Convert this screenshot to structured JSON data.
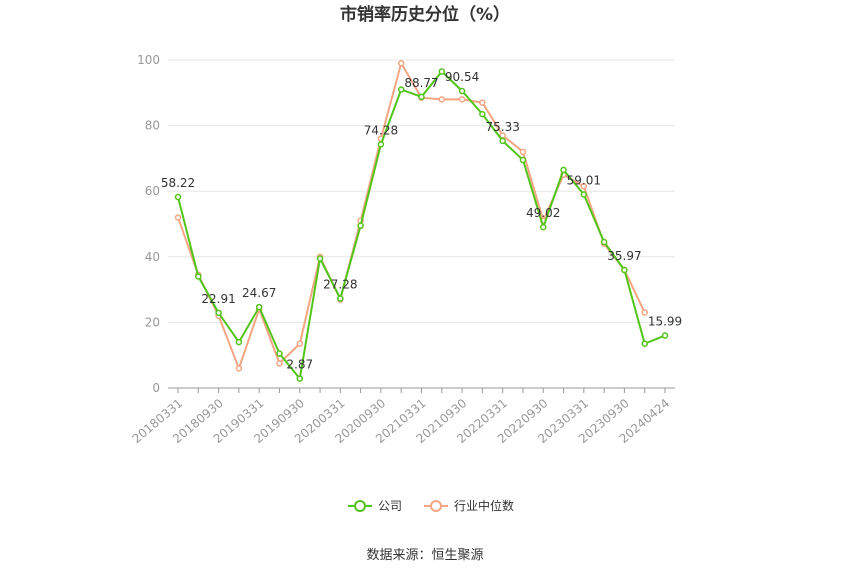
{
  "chart_data": {
    "type": "line",
    "title": "市销率历史分位（%）",
    "xlabel": "",
    "ylabel": "",
    "ylim": [
      0,
      100
    ],
    "yticks": [
      0,
      20,
      40,
      60,
      80,
      100
    ],
    "categories": [
      "20180331",
      "",
      "20180930",
      "",
      "20190331",
      "",
      "20190930",
      "",
      "20200331",
      "",
      "20200930",
      "",
      "20210331",
      "",
      "20210930",
      "",
      "20220331",
      "",
      "20220930",
      "",
      "20230331",
      "",
      "20230930",
      "",
      "20240424"
    ],
    "series": [
      {
        "name": "公司",
        "color": "#52c41a",
        "values": [
          58.22,
          34,
          22.91,
          14,
          24.67,
          10.5,
          2.87,
          39.5,
          27.28,
          49.5,
          74.28,
          91,
          88.77,
          96.5,
          90.54,
          83.5,
          75.33,
          69.5,
          49.02,
          66.5,
          59.01,
          44.5,
          35.97,
          13.5,
          15.99
        ]
      },
      {
        "name": "行业中位数",
        "color": "#f4a582",
        "values": [
          52,
          34.5,
          22,
          6,
          24,
          7.5,
          13.5,
          40,
          27,
          51,
          76,
          99,
          88.5,
          88,
          88,
          87,
          77,
          72,
          51,
          65,
          61.5,
          44,
          36,
          23,
          null
        ]
      }
    ],
    "data_labels": [
      {
        "index": 0,
        "text": "58.22"
      },
      {
        "index": 2,
        "text": "22.91"
      },
      {
        "index": 4,
        "text": "24.67"
      },
      {
        "index": 6,
        "text": "2.87"
      },
      {
        "index": 8,
        "text": "27.28"
      },
      {
        "index": 10,
        "text": "74.28"
      },
      {
        "index": 12,
        "text": "88.77"
      },
      {
        "index": 14,
        "text": "90.54"
      },
      {
        "index": 16,
        "text": "75.33"
      },
      {
        "index": 18,
        "text": "49.02"
      },
      {
        "index": 20,
        "text": "59.01"
      },
      {
        "index": 22,
        "text": "35.97"
      },
      {
        "index": 24,
        "text": "15.99"
      }
    ],
    "legend": "bottom",
    "grid": true
  },
  "footer": {
    "source": "数据来源：恒生聚源"
  }
}
